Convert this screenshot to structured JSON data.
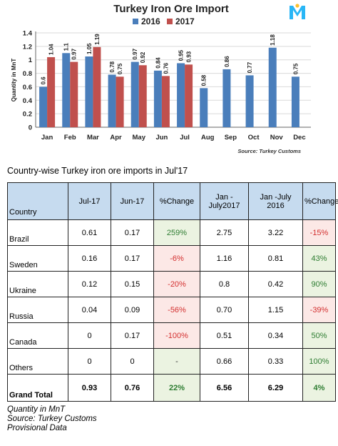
{
  "chart_data": {
    "type": "bar",
    "title": "Turkey Iron Ore Import",
    "ylabel": "Quantity in MnT",
    "xlabel": "",
    "source": "Source: Turkey Customs",
    "ylim": [
      0,
      1.4
    ],
    "yticks": [
      "0",
      "0.2",
      "0.4",
      "0.6",
      "0.8",
      "1",
      "1.2",
      "1.4"
    ],
    "grid": true,
    "legend_position": "top",
    "categories": [
      "Jan",
      "Feb",
      "Mar",
      "Apr",
      "May",
      "Jun",
      "Jul",
      "Aug",
      "Sep",
      "Oct",
      "Nov",
      "Dec"
    ],
    "series": [
      {
        "name": "2016",
        "color": "#4a7ebb",
        "values": [
          0.6,
          1.1,
          1.05,
          0.78,
          0.97,
          0.84,
          0.95,
          0.58,
          0.86,
          0.77,
          1.18,
          0.75
        ],
        "labels": [
          "0.6",
          "1.1",
          "1.05",
          "0.78",
          "0.97",
          "0.84",
          "0.95",
          "0.58",
          "0.86",
          "0.77",
          "1.18",
          "0.75"
        ]
      },
      {
        "name": "2017",
        "color": "#c0504d",
        "values": [
          1.04,
          0.97,
          1.19,
          0.75,
          0.92,
          0.76,
          0.93,
          null,
          null,
          null,
          null,
          null
        ],
        "labels": [
          "1.04",
          "0.97",
          "1.19",
          "0.75",
          "0.92",
          "0.76",
          "0.93",
          "",
          "",
          "",
          "",
          ""
        ]
      }
    ]
  },
  "logo": {
    "name": "m-logo",
    "colors": [
      "#29b6f6",
      "#fbc02d"
    ]
  },
  "table": {
    "title": "Country-wise Turkey iron ore imports in Jul'17",
    "headers": [
      "Country",
      "Jul-17",
      "Jun-17",
      "%Change",
      "Jan - July2017",
      "Jan -July 2016",
      "%Change"
    ],
    "rows": [
      {
        "country": "Brazil",
        "jul17": "0.61",
        "jun17": "0.17",
        "change1": "259%",
        "ytd17": "2.75",
        "ytd16": "3.22",
        "change2": "-15%",
        "c1": "pos",
        "c2": "neg"
      },
      {
        "country": "Sweden",
        "jul17": "0.16",
        "jun17": "0.17",
        "change1": "-6%",
        "ytd17": "1.16",
        "ytd16": "0.81",
        "change2": "43%",
        "c1": "neg",
        "c2": "pos"
      },
      {
        "country": "Ukraine",
        "jul17": "0.12",
        "jun17": "0.15",
        "change1": "-20%",
        "ytd17": "0.8",
        "ytd16": "0.42",
        "change2": "90%",
        "c1": "neg",
        "c2": "pos"
      },
      {
        "country": "Russia",
        "jul17": "0.04",
        "jun17": "0.09",
        "change1": "-56%",
        "ytd17": "0.70",
        "ytd16": "1.15",
        "change2": "-39%",
        "c1": "neg",
        "c2": "neg"
      },
      {
        "country": "Canada",
        "jul17": "0",
        "jun17": "0.17",
        "change1": "-100%",
        "ytd17": "0.51",
        "ytd16": "0.34",
        "change2": "50%",
        "c1": "neg",
        "c2": "pos"
      },
      {
        "country": "Others",
        "jul17": "0",
        "jun17": "0",
        "change1": "-",
        "ytd17": "0.66",
        "ytd16": "0.33",
        "change2": "100%",
        "c1": "neutral",
        "c2": "pos"
      }
    ],
    "total": {
      "country": "Grand Total",
      "jul17": "0.93",
      "jun17": "0.76",
      "change1": "22%",
      "ytd17": "6.56",
      "ytd16": "6.29",
      "change2": "4%",
      "c1": "pos",
      "c2": "pos"
    }
  },
  "footnotes": [
    "Quantity in MnT",
    "Source: Turkey Customs",
    "Provisional Data"
  ]
}
